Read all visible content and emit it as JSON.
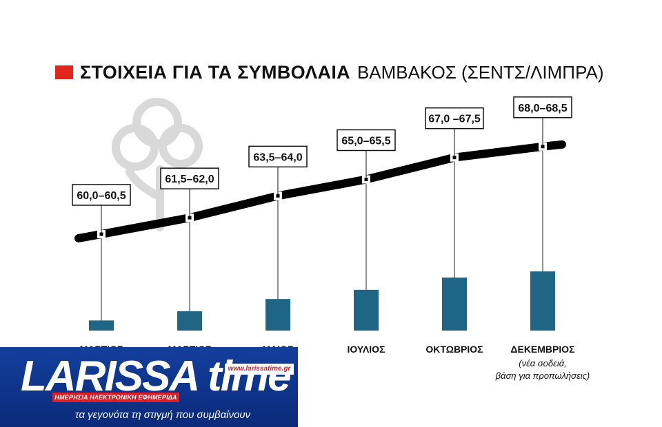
{
  "title": {
    "bold": "ΣΤΟΙΧΕΙΑ ΓΙΑ ΤΑ ΣΥΜΒΟΛΑΙΑ",
    "regular": "ΒΑΜΒΑΚΟΣ (ΣΕΝΤΣ/ΛΙΜΠΡΑ)"
  },
  "chart_data": {
    "type": "bar",
    "title": "ΣΤΟΙΧΕΙΑ ΓΙΑ ΤΑ ΣΥΜΒΟΛΑΙΑ ΒΑΜΒΑΚΟΣ (ΣΕΝΤΣ/ΛΙΜΠΡΑ)",
    "categories": [
      "ΜΑΡΤΙΟΣ",
      "ΜΑΡΤΙΟΣ",
      "ΜΑΙΟΣ",
      "ΙΟΥΛΙΟΣ",
      "ΟΚΤΩΒΡΙΟΣ",
      "ΔΕΚΕΜΒΡΙΟΣ"
    ],
    "category_notes": [
      "",
      "",
      "",
      "",
      "",
      "(νέα σοδειά, βάση για προπωλήσεις)"
    ],
    "labels": [
      "60,0–60,5",
      "61,5–62,0",
      "63,5–64,0",
      "65,0–65,5",
      "67,0 –67,5",
      "68,0–68,5"
    ],
    "low": [
      60.0,
      61.5,
      63.5,
      65.0,
      67.0,
      68.0
    ],
    "high": [
      60.5,
      62.0,
      64.0,
      65.5,
      67.5,
      68.5
    ],
    "colors": {
      "bar": "#1f6685",
      "line": "#000000",
      "accent": "#e1261c"
    },
    "legend": "none",
    "grid": false
  },
  "banner": {
    "logo": "LARISSA time",
    "url": "www.larissatime.gr",
    "strip": "ΗΜΕΡΗΣΙΑ ΗΛΕΚΤΡΟΝΙΚΗ ΕΦΗΜΕΡΙΔΑ",
    "slogan": "τα γεγονότα τη στιγμή που συμβαίνουν"
  },
  "icons": {
    "watermark": "cotton-plant-icon"
  }
}
